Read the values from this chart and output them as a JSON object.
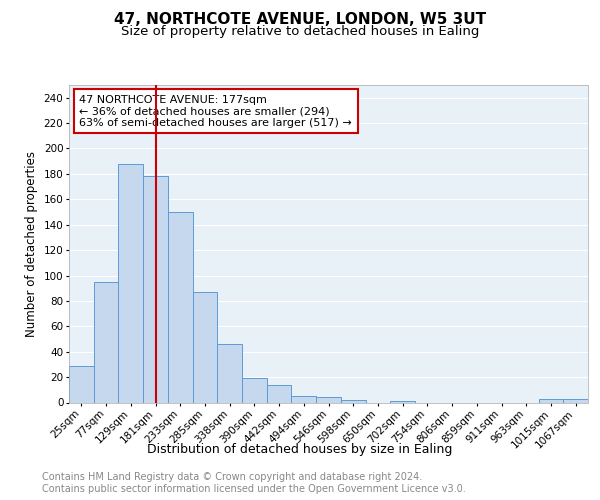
{
  "title": "47, NORTHCOTE AVENUE, LONDON, W5 3UT",
  "subtitle": "Size of property relative to detached houses in Ealing",
  "xlabel": "Distribution of detached houses by size in Ealing",
  "ylabel": "Number of detached properties",
  "categories": [
    "25sqm",
    "77sqm",
    "129sqm",
    "181sqm",
    "233sqm",
    "285sqm",
    "338sqm",
    "390sqm",
    "442sqm",
    "494sqm",
    "546sqm",
    "598sqm",
    "650sqm",
    "702sqm",
    "754sqm",
    "806sqm",
    "859sqm",
    "911sqm",
    "963sqm",
    "1015sqm",
    "1067sqm"
  ],
  "values": [
    29,
    95,
    188,
    178,
    150,
    87,
    46,
    19,
    14,
    5,
    4,
    2,
    0,
    1,
    0,
    0,
    0,
    0,
    0,
    3,
    3
  ],
  "bar_color": "#c5d8ed",
  "bar_edge_color": "#5b9bd5",
  "vline_x_index": 3,
  "vline_color": "#cc0000",
  "annotation_line1": "47 NORTHCOTE AVENUE: 177sqm",
  "annotation_line2": "← 36% of detached houses are smaller (294)",
  "annotation_line3": "63% of semi-detached houses are larger (517) →",
  "annotation_box_color": "white",
  "annotation_box_edge": "#cc0000",
  "ylim": [
    0,
    250
  ],
  "yticks": [
    0,
    20,
    40,
    60,
    80,
    100,
    120,
    140,
    160,
    180,
    200,
    220,
    240
  ],
  "background_color": "#e8f0f8",
  "footer_line1": "Contains HM Land Registry data © Crown copyright and database right 2024.",
  "footer_line2": "Contains public sector information licensed under the Open Government Licence v3.0.",
  "title_fontsize": 11,
  "subtitle_fontsize": 9.5,
  "xlabel_fontsize": 9,
  "ylabel_fontsize": 8.5,
  "tick_fontsize": 7.5,
  "annotation_fontsize": 8,
  "footer_fontsize": 7
}
